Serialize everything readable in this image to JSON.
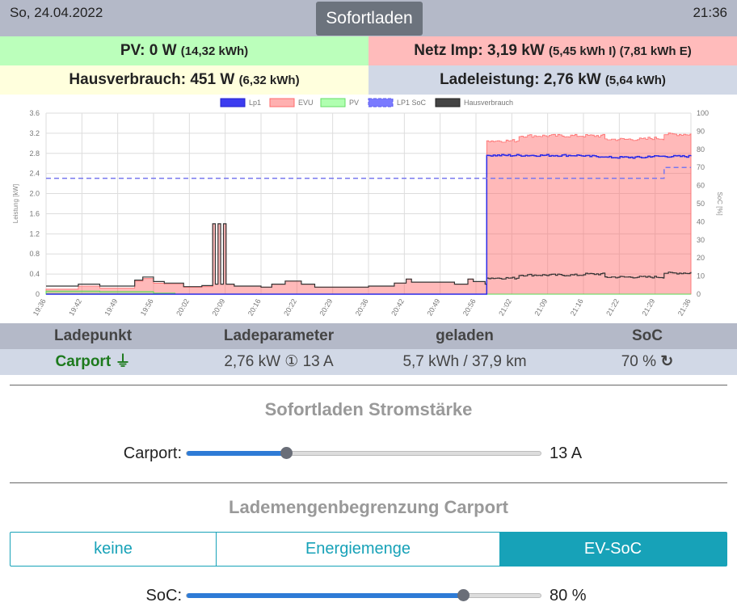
{
  "header": {
    "date": "So, 24.04.2022",
    "time": "21:36",
    "mode_button": "Sofortladen"
  },
  "stats": {
    "pv_main": "PV: 0 W",
    "pv_detail": "(14,32 kWh)",
    "grid_main": "Netz Imp: 3,19 kW",
    "grid_detail": "(5,45 kWh I) (7,81 kWh E)",
    "house_main": "Hausverbrauch: 451 W",
    "house_detail": "(6,32 kWh)",
    "charge_main": "Ladeleistung: 2,76 kW",
    "charge_detail": "(5,64 kWh)"
  },
  "colors": {
    "pv": "#bbffbb",
    "grid": "#ffbbbb",
    "house": "#ffffdd",
    "charge": "#d1d8e6",
    "accent": "#17a2b8"
  },
  "chart_data": {
    "type": "line",
    "legend": [
      "Lp1",
      "EVU",
      "PV",
      "LP1 SoC",
      "Hausverbrauch"
    ],
    "legend_position": "top",
    "ylabel": "Leistung [kW]",
    "y2label": "SoC [%]",
    "ylim": [
      0,
      3.6
    ],
    "y2lim": [
      0,
      100
    ],
    "yticks": [
      "0",
      "0.4",
      "0.8",
      "1.2",
      "1.6",
      "2.0",
      "2.4",
      "2.8",
      "3.2",
      "3.6"
    ],
    "y2ticks": [
      "0",
      "10",
      "20",
      "30",
      "40",
      "50",
      "60",
      "70",
      "80",
      "90",
      "100"
    ],
    "xticks": [
      "19:36",
      "19:42",
      "19:49",
      "19:56",
      "20:02",
      "20:09",
      "20:16",
      "20:22",
      "20:29",
      "20:36",
      "20:42",
      "20:49",
      "20:56",
      "21:02",
      "21:09",
      "21:16",
      "21:22",
      "21:29",
      "21:36"
    ],
    "x_minutes_range": [
      0,
      120
    ],
    "series": {
      "Hausverbrauch": [
        [
          0,
          0.16
        ],
        [
          6,
          0.2
        ],
        [
          10,
          0.16
        ],
        [
          16.5,
          0.28
        ],
        [
          18,
          0.34
        ],
        [
          20,
          0.25
        ],
        [
          22,
          0.22
        ],
        [
          25.6,
          0.15
        ],
        [
          29,
          0.17
        ],
        [
          31,
          1.4
        ],
        [
          31.5,
          0.2
        ],
        [
          32,
          1.4
        ],
        [
          32.5,
          0.2
        ],
        [
          33,
          1.4
        ],
        [
          33.5,
          0.2
        ],
        [
          35,
          0.16
        ],
        [
          40,
          0.14
        ],
        [
          42,
          0.2
        ],
        [
          44.5,
          0.26
        ],
        [
          47.5,
          0.2
        ],
        [
          50,
          0.14
        ],
        [
          60,
          0.16
        ],
        [
          64.8,
          0.22
        ],
        [
          67,
          0.3
        ],
        [
          68,
          0.24
        ],
        [
          76,
          0.2
        ],
        [
          78.5,
          0.3
        ],
        [
          79.5,
          0.25
        ],
        [
          81.7,
          0.2
        ],
        [
          82,
          0.32
        ],
        [
          88,
          0.38
        ],
        [
          100,
          0.4
        ],
        [
          104,
          0.34
        ],
        [
          112,
          0.34
        ],
        [
          115,
          0.42
        ],
        [
          120,
          0.44
        ]
      ],
      "EVU": [
        [
          0,
          0.1
        ],
        [
          6,
          0.16
        ],
        [
          10,
          0.12
        ],
        [
          16.5,
          0.26
        ],
        [
          18,
          0.31
        ],
        [
          20,
          0.22
        ],
        [
          22,
          0.2
        ],
        [
          25.6,
          0.14
        ],
        [
          29,
          0.15
        ],
        [
          31,
          1.4
        ],
        [
          31.5,
          0.2
        ],
        [
          32,
          1.4
        ],
        [
          32.5,
          0.2
        ],
        [
          33,
          1.4
        ],
        [
          33.5,
          0.2
        ],
        [
          35,
          0.16
        ],
        [
          40,
          0.14
        ],
        [
          42,
          0.2
        ],
        [
          44.5,
          0.26
        ],
        [
          47.5,
          0.2
        ],
        [
          50,
          0.14
        ],
        [
          60,
          0.16
        ],
        [
          64.8,
          0.22
        ],
        [
          67,
          0.3
        ],
        [
          68,
          0.24
        ],
        [
          76,
          0.2
        ],
        [
          78.5,
          0.3
        ],
        [
          79.5,
          0.25
        ],
        [
          81.7,
          0.2
        ],
        [
          82,
          3.05
        ],
        [
          88,
          3.15
        ],
        [
          100,
          3.15
        ],
        [
          104,
          3.08
        ],
        [
          112,
          3.1
        ],
        [
          115,
          3.18
        ],
        [
          120,
          3.2
        ]
      ],
      "Lp1": [
        [
          0,
          0
        ],
        [
          81.7,
          0
        ],
        [
          82,
          2.76
        ],
        [
          100,
          2.74
        ],
        [
          104,
          2.72
        ],
        [
          112,
          2.74
        ],
        [
          120,
          2.76
        ]
      ],
      "PV": [
        [
          0,
          0.06
        ],
        [
          10,
          0.05
        ],
        [
          20,
          0.02
        ],
        [
          24,
          0
        ],
        [
          120,
          0
        ]
      ],
      "LP1 SoC": [
        [
          0,
          64
        ],
        [
          115,
          64
        ],
        [
          115,
          70
        ],
        [
          120,
          70
        ]
      ]
    }
  },
  "loadpoints": {
    "headers": [
      "Ladepunkt",
      "Ladeparameter",
      "geladen",
      "SoC"
    ],
    "rows": [
      {
        "name": "Carport",
        "params": "2,76 kW ① 13 A",
        "charged": "5,7 kWh / 37,9 km",
        "soc": "70 %"
      }
    ]
  },
  "current": {
    "title": "Sofortladen Stromstärke",
    "label": "Carport:",
    "value": "13 A",
    "fraction": 0.28
  },
  "limit": {
    "title": "Lademengenbegrenzung Carport",
    "options": [
      "keine",
      "Energiemenge",
      "EV-SoC"
    ],
    "active": 2,
    "label": "SoC:",
    "value": "80 %",
    "fraction": 0.78
  }
}
